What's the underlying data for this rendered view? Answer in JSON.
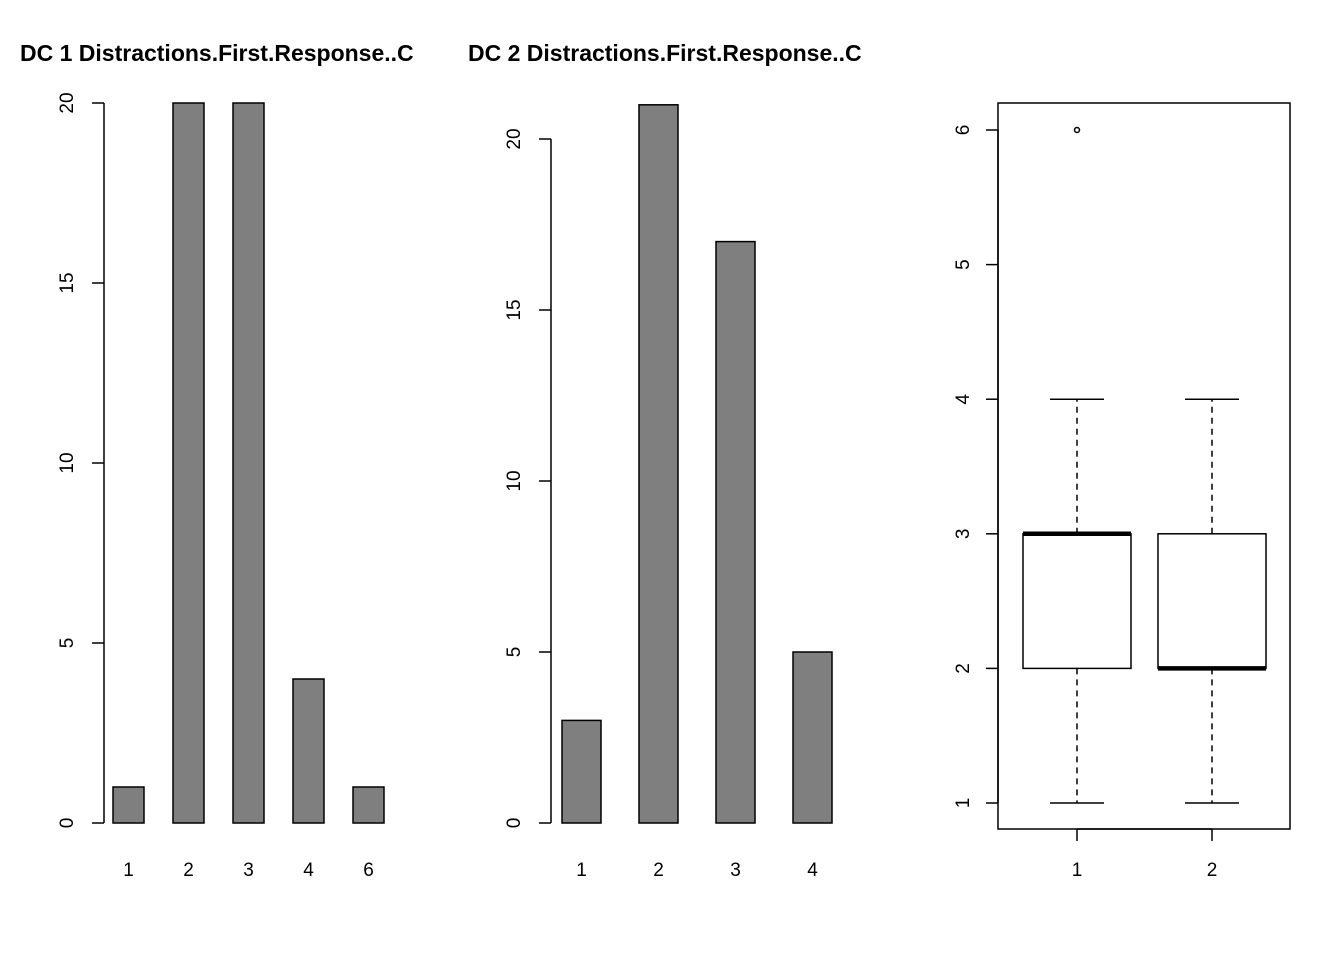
{
  "chart_data": [
    {
      "type": "bar",
      "title": "DC 1 Distractions.First.Response..C",
      "categories": [
        "1",
        "2",
        "3",
        "4",
        "6"
      ],
      "values": [
        1,
        20,
        20,
        4,
        1
      ],
      "ylim": [
        0,
        20
      ],
      "yticks": [
        "0",
        "5",
        "10",
        "15",
        "20"
      ],
      "xlabel": "",
      "ylabel": "",
      "grid": false
    },
    {
      "type": "bar",
      "title": "DC 2 Distractions.First.Response..C",
      "categories": [
        "1",
        "2",
        "3",
        "4"
      ],
      "values": [
        3,
        21,
        17,
        5
      ],
      "ylim": [
        0,
        20
      ],
      "yticks": [
        "0",
        "5",
        "10",
        "15",
        "20"
      ],
      "xlabel": "",
      "ylabel": "",
      "grid": false
    },
    {
      "type": "boxplot",
      "title": "",
      "categories": [
        "1",
        "2"
      ],
      "boxes": [
        {
          "min": 1,
          "q1": 2,
          "median": 3,
          "q3": 3,
          "max": 4,
          "outliers": [
            6
          ]
        },
        {
          "min": 1,
          "q1": 2,
          "median": 2,
          "q3": 3,
          "max": 4,
          "outliers": []
        }
      ],
      "ylim": [
        1,
        6
      ],
      "yticks": [
        "1",
        "2",
        "3",
        "4",
        "5",
        "6"
      ],
      "xlabel": "",
      "ylabel": "",
      "grid": false
    }
  ]
}
